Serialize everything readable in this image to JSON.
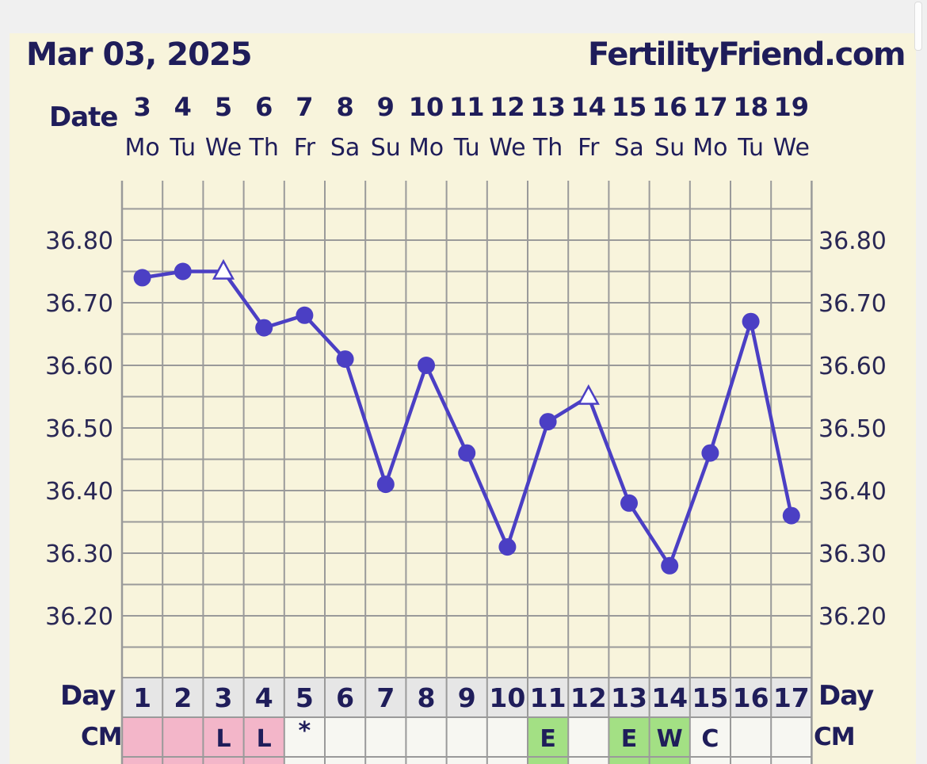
{
  "header": {
    "date": "Mar 03, 2025",
    "brand": "FertilityFriend.com"
  },
  "labels": {
    "date_row": "Date",
    "day_row": "Day",
    "cm_row": "CM"
  },
  "colors": {
    "line": "#4b3fc4",
    "grid": "#9a9a9a",
    "panel": "#f8f4dc",
    "cm_pink": "#f3b6c9",
    "cm_green": "#a3e084",
    "cm_empty": "#f7f7f2",
    "day_row_bg": "#e6e6e6"
  },
  "chart_data": {
    "type": "line",
    "dates": [
      "3",
      "4",
      "5",
      "6",
      "7",
      "8",
      "9",
      "10",
      "11",
      "12",
      "13",
      "14",
      "15",
      "16",
      "17",
      "18",
      "19"
    ],
    "weekdays": [
      "Mo",
      "Tu",
      "We",
      "Th",
      "Fr",
      "Sa",
      "Su",
      "Mo",
      "Tu",
      "We",
      "Th",
      "Fr",
      "Sa",
      "Su",
      "Mo",
      "Tu",
      "We"
    ],
    "cycle_days": [
      "1",
      "2",
      "3",
      "4",
      "5",
      "6",
      "7",
      "8",
      "9",
      "10",
      "11",
      "12",
      "13",
      "14",
      "15",
      "16",
      "17"
    ],
    "temperatures": [
      36.74,
      36.75,
      36.75,
      36.66,
      36.68,
      36.61,
      36.41,
      36.6,
      36.46,
      36.31,
      36.51,
      36.55,
      36.38,
      36.28,
      36.46,
      36.67,
      36.36
    ],
    "markers": [
      "dot",
      "dot",
      "triangle",
      "dot",
      "dot",
      "dot",
      "dot",
      "dot",
      "dot",
      "dot",
      "dot",
      "triangle",
      "dot",
      "dot",
      "dot",
      "dot",
      "dot"
    ],
    "y_ticks": [
      "36.80",
      "36.70",
      "36.60",
      "36.50",
      "36.40",
      "36.30",
      "36.20"
    ],
    "y_tick_values": [
      36.8,
      36.7,
      36.6,
      36.5,
      36.4,
      36.3,
      36.2
    ],
    "ylim": [
      36.11,
      36.89
    ],
    "grid": true,
    "cm": [
      {
        "text": "",
        "color": "pink"
      },
      {
        "text": "",
        "color": "pink"
      },
      {
        "text": "L",
        "color": "pink"
      },
      {
        "text": "L",
        "color": "pink"
      },
      {
        "text": "*",
        "color": "empty"
      },
      {
        "text": "",
        "color": "empty"
      },
      {
        "text": "",
        "color": "empty"
      },
      {
        "text": "",
        "color": "empty"
      },
      {
        "text": "",
        "color": "empty"
      },
      {
        "text": "",
        "color": "empty"
      },
      {
        "text": "E",
        "color": "green"
      },
      {
        "text": "",
        "color": "empty"
      },
      {
        "text": "E",
        "color": "green"
      },
      {
        "text": "W",
        "color": "green"
      },
      {
        "text": "C",
        "color": "empty"
      },
      {
        "text": "",
        "color": "empty"
      },
      {
        "text": "",
        "color": "empty"
      }
    ]
  }
}
